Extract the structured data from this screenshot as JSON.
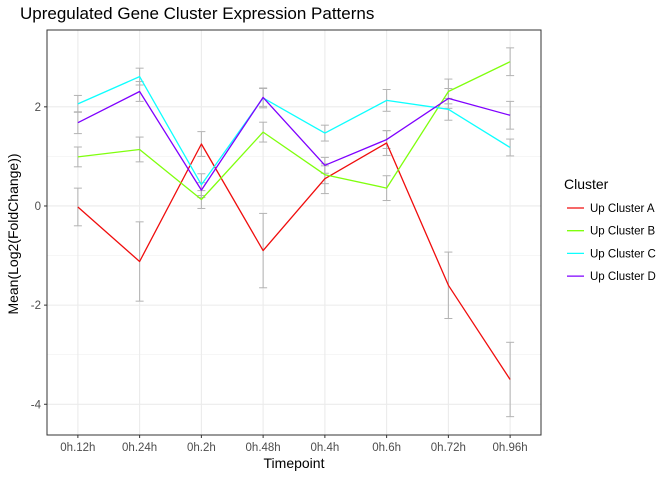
{
  "chart_data": {
    "type": "line",
    "title": "Upregulated Gene Cluster Expression Patterns",
    "xlabel": "Timepoint",
    "ylabel": "Mean(Log2(FoldChange))",
    "categories": [
      "0h.12h",
      "0h.24h",
      "0h.2h",
      "0h.48h",
      "0h.4h",
      "0h.6h",
      "0h.72h",
      "0h.96h"
    ],
    "ylim": [
      -4.62,
      3.55
    ],
    "yticks": [
      -4,
      -2,
      0,
      2
    ],
    "ytick_labels": [
      "-4",
      "-2",
      "0",
      "2"
    ],
    "grid": true,
    "legend": {
      "title": "Cluster",
      "placement": "right"
    },
    "series": [
      {
        "name": "Up Cluster A",
        "color": "#f00d0d",
        "values": [
          -0.02,
          -1.12,
          1.25,
          -0.9,
          0.55,
          1.27,
          -1.6,
          -3.5
        ],
        "error": [
          0.38,
          0.8,
          0.25,
          0.75,
          0.3,
          0.25,
          0.67,
          0.75
        ]
      },
      {
        "name": "Up Cluster B",
        "color": "#7fff0d",
        "values": [
          0.99,
          1.14,
          0.13,
          1.49,
          0.63,
          0.36,
          2.31,
          2.91
        ],
        "error": [
          0.2,
          0.25,
          0.18,
          0.2,
          0.18,
          0.25,
          0.25,
          0.28
        ]
      },
      {
        "name": "Up Cluster C",
        "color": "#0dffff",
        "values": [
          2.06,
          2.61,
          0.43,
          2.18,
          1.47,
          2.13,
          1.95,
          1.18
        ],
        "error": [
          0.17,
          0.17,
          0.22,
          0.2,
          0.16,
          0.22,
          0.22,
          0.17
        ]
      },
      {
        "name": "Up Cluster D",
        "color": "#7f00ff",
        "values": [
          1.68,
          2.31,
          0.32,
          2.19,
          0.82,
          1.34,
          2.17,
          1.83
        ],
        "error": [
          0.22,
          0.2,
          0.15,
          0.18,
          0.16,
          0.18,
          0.2,
          0.28
        ]
      }
    ]
  }
}
